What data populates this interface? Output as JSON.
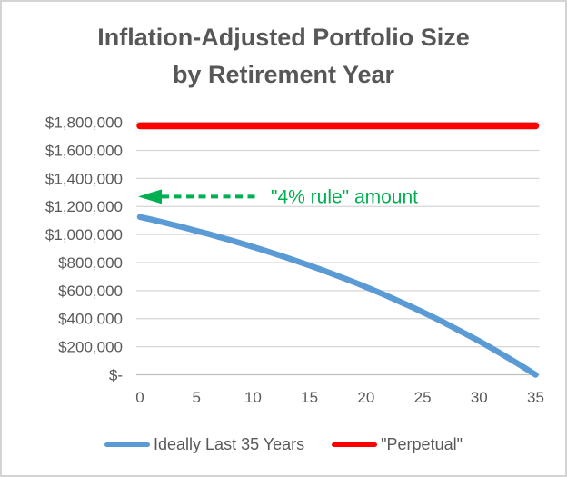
{
  "title": {
    "line1": "Inflation-Adjusted Portfolio Size",
    "line2": "by Retirement Year"
  },
  "colors": {
    "blue": "#5B9BD5",
    "red": "#FF0000",
    "green": "#00B050",
    "text": "#595959",
    "title_text": "#575757",
    "gridline": "#D6D6D6",
    "axis_line": "#BFBFBF"
  },
  "annotation": {
    "text": "\"4% rule\" amount",
    "value": 1270000
  },
  "legend": [
    {
      "label": "Ideally Last 35 Years",
      "color": "#5B9BD5"
    },
    {
      "label": "\"Perpetual\"",
      "color": "#FF0000"
    }
  ],
  "chart_data": {
    "type": "line",
    "title": "Inflation-Adjusted Portfolio Size by Retirement Year",
    "xlabel": "",
    "ylabel": "",
    "grid": true,
    "legend_position": "bottom",
    "xlim": [
      0,
      35
    ],
    "ylim": [
      0,
      1800000
    ],
    "x_ticks": [
      0,
      5,
      10,
      15,
      20,
      25,
      30,
      35
    ],
    "y_ticks": [
      {
        "value": 1800000,
        "label": "$1,800,000"
      },
      {
        "value": 1600000,
        "label": "$1,600,000"
      },
      {
        "value": 1400000,
        "label": "$1,400,000"
      },
      {
        "value": 1200000,
        "label": "$1,200,000"
      },
      {
        "value": 1000000,
        "label": "$1,000,000"
      },
      {
        "value": 800000,
        "label": "$800,000"
      },
      {
        "value": 600000,
        "label": "$600,000"
      },
      {
        "value": 400000,
        "label": "$400,000"
      },
      {
        "value": 200000,
        "label": "$200,000"
      },
      {
        "value": 0,
        "label": "$-"
      }
    ],
    "x": [
      0,
      1,
      2,
      3,
      4,
      5,
      6,
      7,
      8,
      9,
      10,
      11,
      12,
      13,
      14,
      15,
      16,
      17,
      18,
      19,
      20,
      21,
      22,
      23,
      24,
      25,
      26,
      27,
      28,
      29,
      30,
      31,
      32,
      33,
      34,
      35
    ],
    "series": [
      {
        "name": "Ideally Last 35 Years",
        "color": "#5B9BD5",
        "values": [
          1125000,
          1107000,
          1088000,
          1068000,
          1048000,
          1026000,
          1005000,
          982000,
          960000,
          936000,
          912000,
          887000,
          861000,
          834000,
          807000,
          779000,
          750000,
          720000,
          689000,
          658000,
          625000,
          592000,
          557000,
          521000,
          485000,
          447000,
          408000,
          368000,
          326000,
          284000,
          240000,
          195000,
          148000,
          100000,
          51000,
          0
        ]
      },
      {
        "name": "\"Perpetual\"",
        "color": "#FF0000",
        "constant_value": 1775000
      }
    ]
  }
}
